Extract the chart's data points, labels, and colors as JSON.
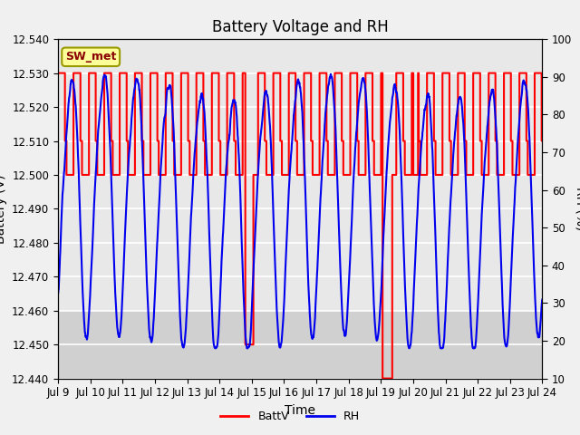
{
  "title": "Battery Voltage and RH",
  "xlabel": "Time",
  "ylabel_left": "Battery (V)",
  "ylabel_right": "RH (%)",
  "ylim_left": [
    12.44,
    12.54
  ],
  "ylim_right": [
    10,
    100
  ],
  "yticks_left": [
    12.44,
    12.45,
    12.46,
    12.47,
    12.48,
    12.49,
    12.5,
    12.51,
    12.52,
    12.53,
    12.54
  ],
  "yticks_right": [
    10,
    20,
    30,
    40,
    50,
    60,
    70,
    80,
    90,
    100
  ],
  "xtick_labels": [
    "Jul 9",
    "Jul 10",
    "Jul 11",
    "Jul 12",
    "Jul 13",
    "Jul 14",
    "Jul 15",
    "Jul 16",
    "Jul 17",
    "Jul 18",
    "Jul 19",
    "Jul 20",
    "Jul 21",
    "Jul 22",
    "Jul 23",
    "Jul 24"
  ],
  "annotation_text": "SW_met",
  "batt_color": "#FF0000",
  "rh_color": "#0000EE",
  "bg_outer": "#F0F0F0",
  "bg_inner_light": "#E8E8E8",
  "bg_inner_dark": "#D0D0D0",
  "grid_color": "#FFFFFF",
  "legend_batt": "BattV",
  "legend_rh": "RH",
  "title_fontsize": 12,
  "axis_fontsize": 10,
  "tick_fontsize": 8.5,
  "linewidth_batt": 1.5,
  "linewidth_rh": 1.5
}
